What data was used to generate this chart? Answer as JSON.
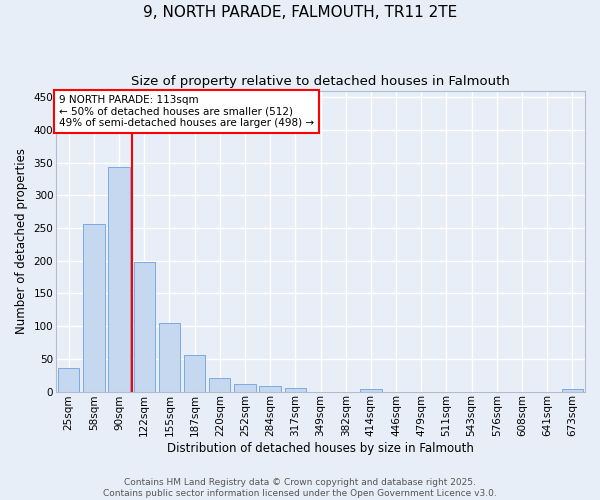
{
  "title": "9, NORTH PARADE, FALMOUTH, TR11 2TE",
  "subtitle": "Size of property relative to detached houses in Falmouth",
  "xlabel": "Distribution of detached houses by size in Falmouth",
  "ylabel": "Number of detached properties",
  "categories": [
    "25sqm",
    "58sqm",
    "90sqm",
    "122sqm",
    "155sqm",
    "187sqm",
    "220sqm",
    "252sqm",
    "284sqm",
    "317sqm",
    "349sqm",
    "382sqm",
    "414sqm",
    "446sqm",
    "479sqm",
    "511sqm",
    "543sqm",
    "576sqm",
    "608sqm",
    "641sqm",
    "673sqm"
  ],
  "values": [
    36,
    256,
    343,
    198,
    104,
    56,
    20,
    11,
    8,
    5,
    0,
    0,
    4,
    0,
    0,
    0,
    0,
    0,
    0,
    0,
    4
  ],
  "bar_color": "#c6d8f0",
  "bar_edge_color": "#7aace0",
  "vline_color": "red",
  "vline_x": 2.5,
  "annotation_text": "9 NORTH PARADE: 113sqm\n← 50% of detached houses are smaller (512)\n49% of semi-detached houses are larger (498) →",
  "annotation_box_color": "white",
  "annotation_box_edge_color": "red",
  "ylim": [
    0,
    460
  ],
  "yticks": [
    0,
    50,
    100,
    150,
    200,
    250,
    300,
    350,
    400,
    450
  ],
  "background_color": "#e8eef8",
  "grid_color": "white",
  "footer_text": "Contains HM Land Registry data © Crown copyright and database right 2025.\nContains public sector information licensed under the Open Government Licence v3.0.",
  "title_fontsize": 11,
  "subtitle_fontsize": 9.5,
  "axis_label_fontsize": 8.5,
  "tick_fontsize": 7.5,
  "annotation_fontsize": 7.5,
  "footer_fontsize": 6.5
}
